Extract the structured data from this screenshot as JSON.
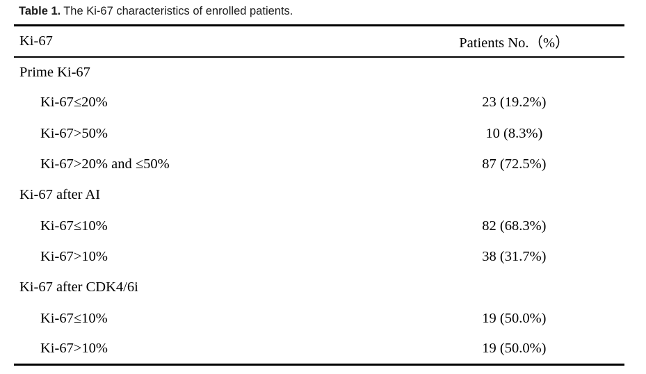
{
  "caption": {
    "label": "Table 1.",
    "text": "The Ki-67 characteristics of enrolled patients."
  },
  "table": {
    "columns": [
      "Ki-67",
      "Patients No.（%）"
    ],
    "rows": [
      {
        "label": "Prime Ki-67",
        "value": "",
        "indent": false
      },
      {
        "label": "Ki-67≤20%",
        "value": "23 (19.2%)",
        "indent": true
      },
      {
        "label": "Ki-67>50%",
        "value": "10 (8.3%)",
        "indent": true
      },
      {
        "label": "Ki-67>20% and ≤50%",
        "value": "87 (72.5%)",
        "indent": true
      },
      {
        "label": "Ki-67 after AI",
        "value": "",
        "indent": false
      },
      {
        "label": "Ki-67≤10%",
        "value": "82 (68.3%)",
        "indent": true
      },
      {
        "label": "Ki-67>10%",
        "value": "38 (31.7%)",
        "indent": true
      },
      {
        "label": "Ki-67 after CDK4/6i",
        "value": "",
        "indent": false
      },
      {
        "label": "Ki-67≤10%",
        "value": "19 (50.0%)",
        "indent": true
      },
      {
        "label": "Ki-67>10%",
        "value": "19 (50.0%)",
        "indent": true
      }
    ],
    "text_color": "#000000",
    "rule_color": "#000000",
    "background_color": "#ffffff"
  }
}
